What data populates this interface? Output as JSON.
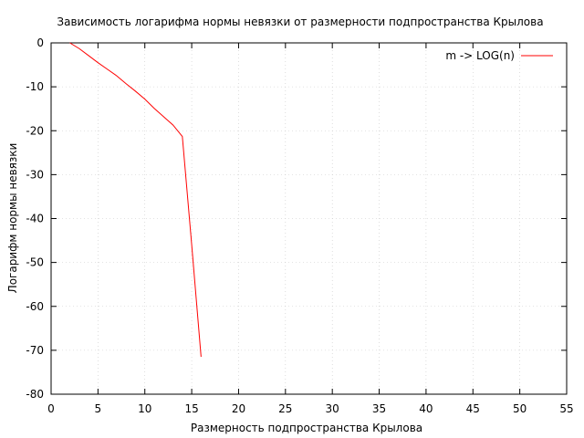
{
  "chart_data": {
    "type": "line",
    "title": "Зависимость логарифма нормы невязки от размерности подпространства Крылова",
    "xlabel": "Размерность подпространства Крылова",
    "ylabel": "Логарифм нормы невязки",
    "xlim": [
      0,
      55
    ],
    "ylim": [
      -80,
      0
    ],
    "xticks": [
      0,
      5,
      10,
      15,
      20,
      25,
      30,
      35,
      40,
      45,
      50,
      55
    ],
    "yticks": [
      0,
      -10,
      -20,
      -30,
      -40,
      -50,
      -60,
      -70,
      -80
    ],
    "grid": true,
    "legend_position": "top-right",
    "series": [
      {
        "name": "m -> LOG(n)",
        "color": "#ff0000",
        "x": [
          2,
          3,
          4,
          5,
          6,
          7,
          8,
          9,
          10,
          11,
          12,
          13,
          14,
          15,
          16
        ],
        "y": [
          0,
          -1.3,
          -2.9,
          -4.5,
          -6.0,
          -7.5,
          -9.3,
          -11.0,
          -12.8,
          -14.9,
          -16.8,
          -18.7,
          -21.3,
          -46.0,
          -71.5
        ]
      }
    ]
  }
}
